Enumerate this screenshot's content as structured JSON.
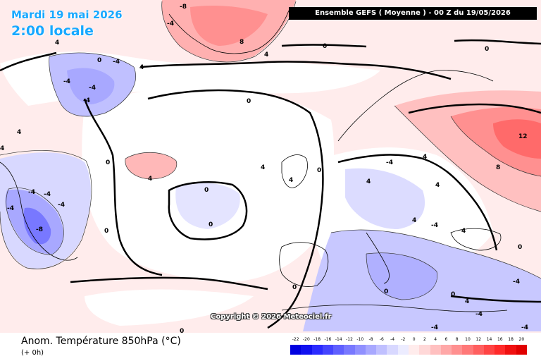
{
  "header": {
    "date_label": "Mardi 19 mai 2026",
    "time_label": "2:00 locale",
    "run_label": "Ensemble GEFS  ( Moyenne )  -  00 Z du 19/05/2026"
  },
  "watermark": "Copyright © 2026 Meteociel.fr",
  "footer": {
    "parameter_label": "Anom. Température 850hPa (°C)",
    "offset_label": "(+ 0h)"
  },
  "legend": {
    "ticks": [
      "-22",
      "-20",
      "-18",
      "-16",
      "-14",
      "-12",
      "-10",
      "-8",
      "-6",
      "-4",
      "-2",
      "0",
      "2",
      "4",
      "6",
      "8",
      "10",
      "12",
      "14",
      "16",
      "18",
      "20"
    ],
    "colors": [
      "#0000e0",
      "#1010f0",
      "#2a2aff",
      "#4444ff",
      "#5f5fff",
      "#7878ff",
      "#9090ff",
      "#a8a8ff",
      "#c0c0ff",
      "#d8d8ff",
      "#ececff",
      "#ffecec",
      "#ffd8d8",
      "#ffc0c0",
      "#ffa8a8",
      "#ff9090",
      "#ff7878",
      "#ff5f5f",
      "#ff4444",
      "#ff2a2a",
      "#f01010",
      "#e00000"
    ]
  },
  "contour_labels": [
    {
      "text": "-8"
    },
    {
      "text": "-4"
    },
    {
      "text": "-4"
    },
    {
      "text": "4"
    },
    {
      "text": "4"
    },
    {
      "text": "0"
    },
    {
      "text": "0"
    },
    {
      "text": "-4"
    },
    {
      "text": "-4"
    },
    {
      "text": "0"
    },
    {
      "text": "-4"
    },
    {
      "text": "-4"
    },
    {
      "text": "4"
    },
    {
      "text": "4"
    },
    {
      "text": "-4"
    },
    {
      "text": "-4"
    },
    {
      "text": "-4"
    },
    {
      "text": "-8"
    },
    {
      "text": "0"
    },
    {
      "text": "0"
    },
    {
      "text": "4"
    },
    {
      "text": "4"
    },
    {
      "text": "0"
    },
    {
      "text": "0"
    },
    {
      "text": "0"
    },
    {
      "text": "0"
    },
    {
      "text": "0"
    },
    {
      "text": "4"
    },
    {
      "text": "8"
    },
    {
      "text": "4"
    },
    {
      "text": "12"
    },
    {
      "text": "8"
    },
    {
      "text": "4"
    },
    {
      "text": "4"
    },
    {
      "text": "0"
    },
    {
      "text": "-4"
    },
    {
      "text": "-4"
    },
    {
      "text": "4"
    },
    {
      "text": "4"
    },
    {
      "text": "-4"
    },
    {
      "text": "0"
    },
    {
      "text": "0"
    },
    {
      "text": "0"
    },
    {
      "text": "4"
    },
    {
      "text": "-4"
    },
    {
      "text": "-4"
    },
    {
      "text": "-4"
    },
    {
      "text": "4"
    }
  ]
}
